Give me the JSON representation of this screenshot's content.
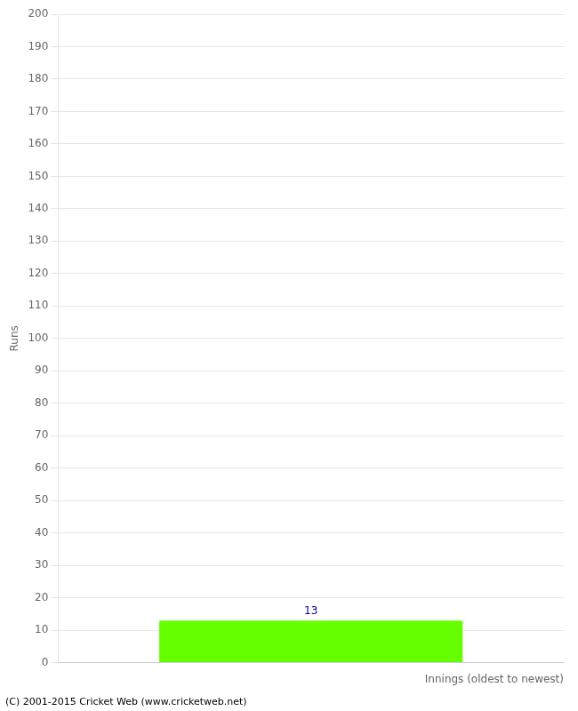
{
  "chart_data": {
    "type": "bar",
    "xlabel": "Innings (oldest to newest)",
    "ylabel": "Runs",
    "categories": [
      null
    ],
    "values": [
      13
    ],
    "color": "#66ff00",
    "ylim": [
      0,
      200
    ],
    "yticks": [
      0,
      10,
      20,
      30,
      40,
      50,
      60,
      70,
      80,
      90,
      100,
      110,
      120,
      130,
      140,
      150,
      160,
      170,
      180,
      190,
      200
    ],
    "grid": true,
    "data_labels": true,
    "tick_labels": "y",
    "annotations": [
      "(C) 2001-2015 Cricket Web (www.cricketweb.net)"
    ]
  }
}
